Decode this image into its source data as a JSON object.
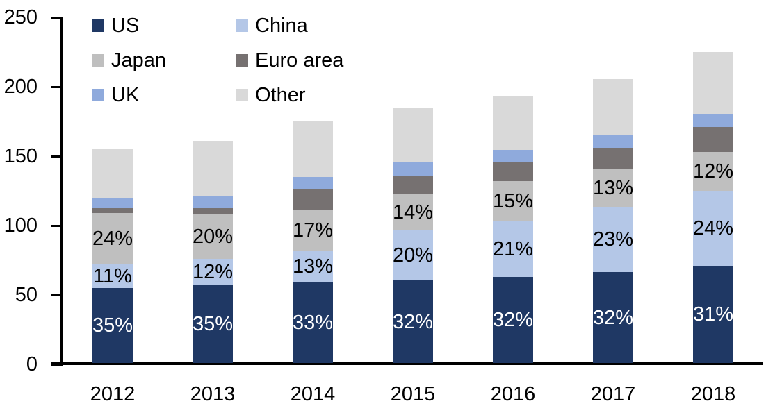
{
  "chart_data": {
    "type": "bar",
    "stacked": true,
    "title": "",
    "xlabel": "",
    "ylabel": "",
    "categories": [
      "2012",
      "2013",
      "2014",
      "2015",
      "2016",
      "2017",
      "2018"
    ],
    "series": [
      {
        "name": "US",
        "color": "#1F3864",
        "values": [
          54,
          56,
          58,
          59.5,
          62,
          65.5,
          70
        ],
        "segment_labels": [
          "35%",
          "35%",
          "33%",
          "32%",
          "32%",
          "32%",
          "31%"
        ],
        "label_color": "#FFFFFF"
      },
      {
        "name": "China",
        "color": "#B4C7E7",
        "values": [
          17,
          19,
          23,
          36.5,
          40.5,
          47,
          54
        ],
        "segment_labels": [
          "11%",
          "12%",
          "13%",
          "20%",
          "21%",
          "23%",
          "24%"
        ],
        "label_color": "#000000"
      },
      {
        "name": "Japan",
        "color": "#BFBFBF",
        "values": [
          37,
          32,
          29.5,
          25.5,
          28.5,
          27,
          28
        ],
        "segment_labels": [
          "24%",
          "20%",
          "17%",
          "14%",
          "15%",
          "13%",
          "12%"
        ],
        "label_color": "#000000"
      },
      {
        "name": "Euro area",
        "color": "#767171",
        "values": [
          3.5,
          4.5,
          14.5,
          13.5,
          14,
          15.5,
          18
        ],
        "segment_labels": null,
        "label_color": null
      },
      {
        "name": "UK",
        "color": "#8FAADC",
        "values": [
          7.5,
          9,
          9,
          9.5,
          8.5,
          9,
          9.5
        ],
        "segment_labels": null,
        "label_color": null
      },
      {
        "name": "Other",
        "color": "#D9D9D9",
        "values": [
          35,
          39.5,
          40,
          39.5,
          38.5,
          40.5,
          44.5
        ],
        "segment_labels": null,
        "label_color": null
      }
    ],
    "totals_estimated": [
      154,
      160,
      174,
      184,
      192,
      205,
      224
    ],
    "ylim": [
      0,
      250
    ],
    "yticks": [
      0,
      50,
      100,
      150,
      200,
      250
    ],
    "grid": false,
    "legend_position": "top-left",
    "legend_columns": 2,
    "axis_color": "#000000",
    "background_color": "#FFFFFF"
  }
}
